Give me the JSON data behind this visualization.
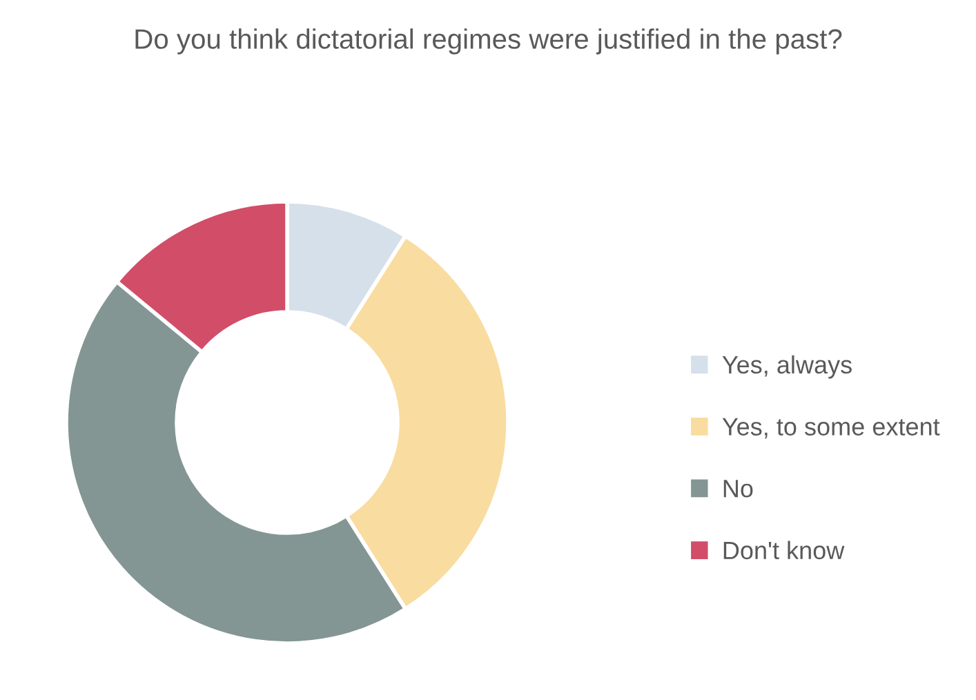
{
  "chart_data": {
    "type": "donut",
    "title": "Do you think dictatorial regimes were justified in the past?",
    "categories": [
      "Yes, always",
      "Yes, to some extent",
      "No",
      "Don't know"
    ],
    "values": [
      9,
      32,
      45,
      14
    ],
    "colors": [
      "#d6e0ea",
      "#f9dc9f",
      "#839694",
      "#d24d68"
    ],
    "legend": "right"
  }
}
